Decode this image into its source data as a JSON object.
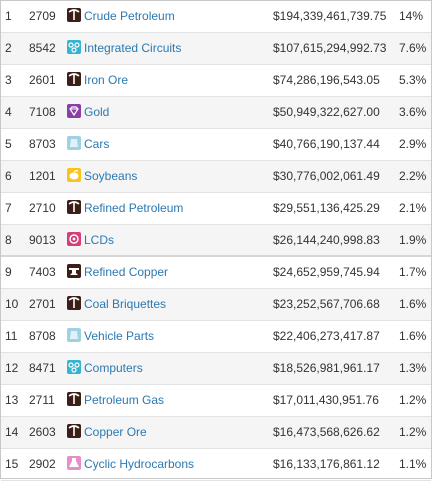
{
  "rows": [
    {
      "rank": "1",
      "code": "2709",
      "icon": "pickaxe-icon",
      "name": "Crude Petroleum",
      "value": "$194,339,461,739.75",
      "share": "14%"
    },
    {
      "rank": "2",
      "code": "8542",
      "icon": "circuit-icon",
      "name": "Integrated Circuits",
      "value": "$107,615,294,992.73",
      "share": "7.6%"
    },
    {
      "rank": "3",
      "code": "2601",
      "icon": "pickaxe-icon",
      "name": "Iron Ore",
      "value": "$74,286,196,543.05",
      "share": "5.3%"
    },
    {
      "rank": "4",
      "code": "7108",
      "icon": "gem-icon",
      "name": "Gold",
      "value": "$50,949,322,627.00",
      "share": "3.6%"
    },
    {
      "rank": "5",
      "code": "8703",
      "icon": "machine-icon",
      "name": "Cars",
      "value": "$40,766,190,137.44",
      "share": "2.9%"
    },
    {
      "rank": "6",
      "code": "1201",
      "icon": "plant-icon",
      "name": "Soybeans",
      "value": "$30,776,002,061.49",
      "share": "2.2%"
    },
    {
      "rank": "7",
      "code": "2710",
      "icon": "pickaxe-icon",
      "name": "Refined Petroleum",
      "value": "$29,551,136,425.29",
      "share": "2.1%"
    },
    {
      "rank": "8",
      "code": "9013",
      "icon": "instrument-icon",
      "name": "LCDs",
      "value": "$26,144,240,998.83",
      "share": "1.9%"
    },
    {
      "rank": "9",
      "code": "7403",
      "icon": "anvil-icon",
      "name": "Refined Copper",
      "value": "$24,652,959,745.94",
      "share": "1.7%"
    },
    {
      "rank": "10",
      "code": "2701",
      "icon": "pickaxe-icon",
      "name": "Coal Briquettes",
      "value": "$23,252,567,706.68",
      "share": "1.6%"
    },
    {
      "rank": "11",
      "code": "8708",
      "icon": "machine-icon",
      "name": "Vehicle Parts",
      "value": "$22,406,273,417.87",
      "share": "1.6%"
    },
    {
      "rank": "12",
      "code": "8471",
      "icon": "circuit-icon",
      "name": "Computers",
      "value": "$18,526,981,961.17",
      "share": "1.3%"
    },
    {
      "rank": "13",
      "code": "2711",
      "icon": "pickaxe-icon",
      "name": "Petroleum Gas",
      "value": "$17,011,430,951.76",
      "share": "1.2%"
    },
    {
      "rank": "14",
      "code": "2603",
      "icon": "pickaxe-icon",
      "name": "Copper Ore",
      "value": "$16,473,568,626.62",
      "share": "1.2%"
    },
    {
      "rank": "15",
      "code": "2902",
      "icon": "flask-icon",
      "name": "Cyclic Hydrocarbons",
      "value": "$16,133,176,861.12",
      "share": "1.1%"
    }
  ],
  "colors": {
    "link": "#2a79b3",
    "row_alt": "#f5f5f5",
    "mineral_icon": "#3b1f17",
    "electronics_icon": "#37b3d1",
    "precious_icon": "#8b3ea6",
    "transport_icon": "#9fd0e3",
    "vegetable_icon": "#f7c41f",
    "instrument_icon": "#d43f7a",
    "metal_icon": "#3b1f17",
    "chemical_icon": "#e58fc6"
  }
}
